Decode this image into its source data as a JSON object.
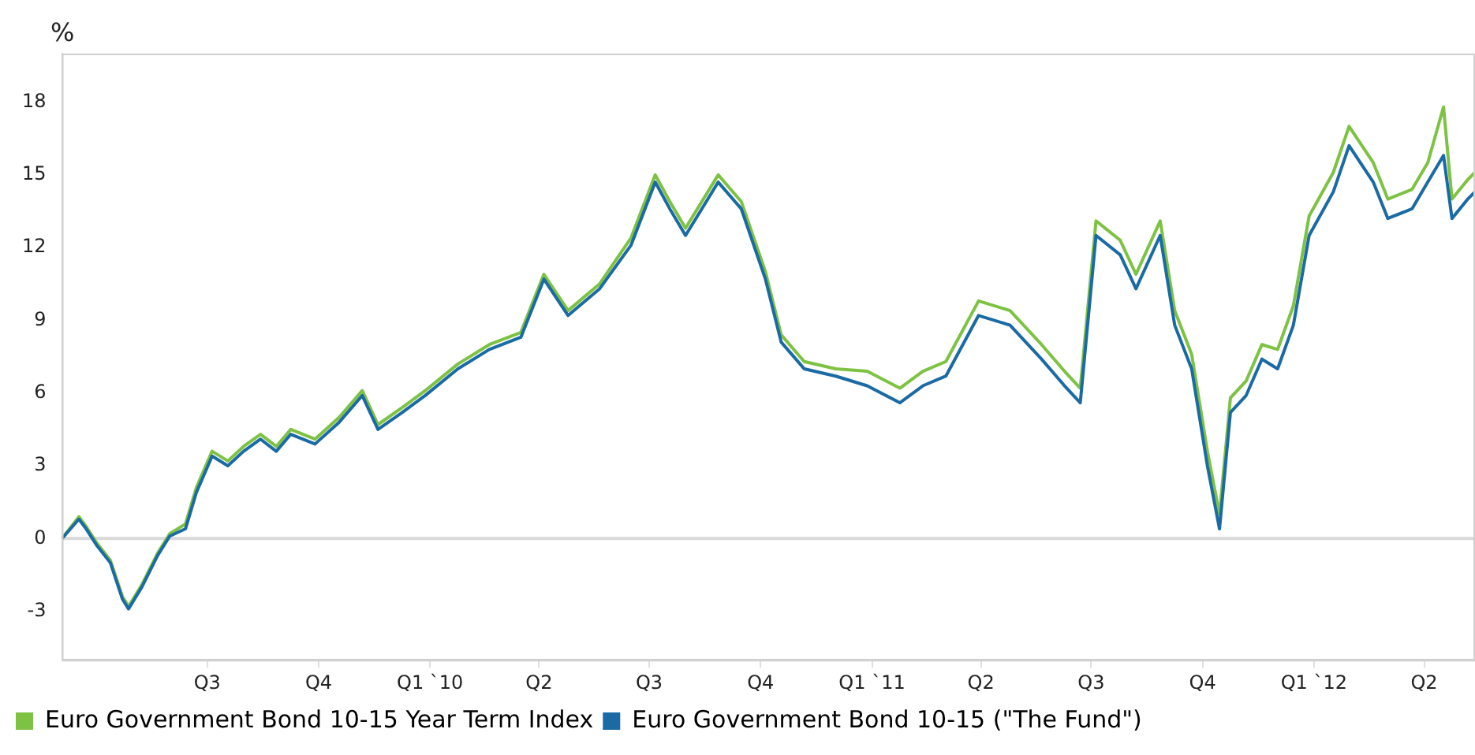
{
  "chart_data": {
    "type": "line",
    "ylabel": "%",
    "legend": "bottom",
    "grid": false,
    "marker": "none",
    "line_style": "solid",
    "xlim": [
      "2009-03-03",
      "2012-05-13"
    ],
    "xticks": [
      {
        "value": "2009-07-01",
        "label": "Q3"
      },
      {
        "value": "2009-10-01",
        "label": "Q4"
      },
      {
        "value": "2010-01-01",
        "label": "Q1 `10"
      },
      {
        "value": "2010-04-01",
        "label": "Q2"
      },
      {
        "value": "2010-07-01",
        "label": "Q3"
      },
      {
        "value": "2010-10-01",
        "label": "Q4"
      },
      {
        "value": "2011-01-01",
        "label": "Q1 `11"
      },
      {
        "value": "2011-04-01",
        "label": "Q2"
      },
      {
        "value": "2011-07-01",
        "label": "Q3"
      },
      {
        "value": "2011-10-01",
        "label": "Q4"
      },
      {
        "value": "2012-01-01",
        "label": "Q1 `12"
      },
      {
        "value": "2012-04-01",
        "label": "Q2"
      }
    ],
    "ylim": [
      -5,
      20
    ],
    "yticks": [
      -3,
      0,
      3,
      6,
      9,
      12,
      15,
      18
    ],
    "ref_lines": [
      {
        "axis": "y",
        "value": 0,
        "color": "#d9d9d9"
      }
    ],
    "x": [
      "2009-03-03",
      "2009-03-17",
      "2009-03-23",
      "2009-04-01",
      "2009-04-12",
      "2009-04-22",
      "2009-04-27",
      "2009-05-08",
      "2009-05-21",
      "2009-05-31",
      "2009-06-13",
      "2009-06-22",
      "2009-07-05",
      "2009-07-18",
      "2009-07-31",
      "2009-08-14",
      "2009-08-27",
      "2009-09-08",
      "2009-09-28",
      "2009-10-18",
      "2009-11-06",
      "2009-11-19",
      "2009-12-09",
      "2009-12-28",
      "2010-01-24",
      "2010-02-19",
      "2010-03-17",
      "2010-04-05",
      "2010-04-25",
      "2010-05-21",
      "2010-06-16",
      "2010-07-06",
      "2010-07-18",
      "2010-07-31",
      "2010-08-27",
      "2010-09-15",
      "2010-10-05",
      "2010-10-18",
      "2010-11-06",
      "2010-12-02",
      "2010-12-28",
      "2011-01-24",
      "2011-02-12",
      "2011-03-03",
      "2011-03-30",
      "2011-04-25",
      "2011-05-21",
      "2011-06-09",
      "2011-06-22",
      "2011-07-05",
      "2011-07-25",
      "2011-08-07",
      "2011-08-27",
      "2011-09-08",
      "2011-09-22",
      "2011-10-05",
      "2011-10-15",
      "2011-10-24",
      "2011-11-06",
      "2011-11-19",
      "2011-12-02",
      "2011-12-15",
      "2011-12-28",
      "2012-01-17",
      "2012-01-30",
      "2012-02-19",
      "2012-03-02",
      "2012-03-22",
      "2012-04-04",
      "2012-04-17",
      "2012-04-24",
      "2012-05-07",
      "2012-05-13"
    ],
    "series": [
      {
        "name": "Euro Government Bond 10-15 Year Term Index",
        "color": "#7dc242",
        "values": [
          0,
          0.9,
          0.5,
          -0.2,
          -0.9,
          -2.4,
          -2.8,
          -1.9,
          -0.6,
          0.2,
          0.6,
          2.1,
          3.6,
          3.2,
          3.8,
          4.3,
          3.8,
          4.5,
          4.1,
          5.0,
          6.1,
          4.7,
          5.4,
          6.1,
          7.2,
          8.0,
          8.5,
          10.9,
          9.4,
          10.5,
          12.4,
          15.0,
          13.9,
          12.8,
          15.0,
          13.9,
          11.0,
          8.4,
          7.3,
          7.0,
          6.9,
          6.2,
          6.9,
          7.3,
          9.8,
          9.4,
          8.0,
          6.9,
          6.2,
          13.1,
          12.3,
          10.9,
          13.1,
          9.4,
          7.6,
          3.6,
          1.0,
          5.8,
          6.5,
          8.0,
          7.8,
          9.6,
          13.3,
          15.1,
          17.0,
          15.5,
          14.0,
          14.4,
          15.5,
          17.8,
          14.0,
          14.8,
          15.1
        ]
      },
      {
        "name": "Euro Government Bond 10-15 (\"The Fund\")",
        "color": "#1a6aa5",
        "values": [
          0,
          0.8,
          0.4,
          -0.3,
          -1,
          -2.5,
          -2.9,
          -2,
          -0.7,
          0.1,
          0.4,
          1.9,
          3.4,
          3.0,
          3.6,
          4.1,
          3.6,
          4.3,
          3.9,
          4.8,
          5.9,
          4.5,
          5.2,
          5.9,
          7.0,
          7.8,
          8.3,
          10.7,
          9.2,
          10.3,
          12.1,
          14.7,
          13.6,
          12.5,
          14.7,
          13.6,
          10.7,
          8.1,
          7.0,
          6.7,
          6.3,
          5.6,
          6.3,
          6.7,
          9.2,
          8.8,
          7.4,
          6.3,
          5.6,
          12.5,
          11.7,
          10.3,
          12.5,
          8.8,
          7.0,
          3.0,
          0.4,
          5.2,
          5.9,
          7.4,
          7.0,
          8.8,
          12.5,
          14.3,
          16.2,
          14.7,
          13.2,
          13.6,
          14.7,
          15.8,
          13.2,
          14.0,
          14.3
        ]
      }
    ]
  }
}
